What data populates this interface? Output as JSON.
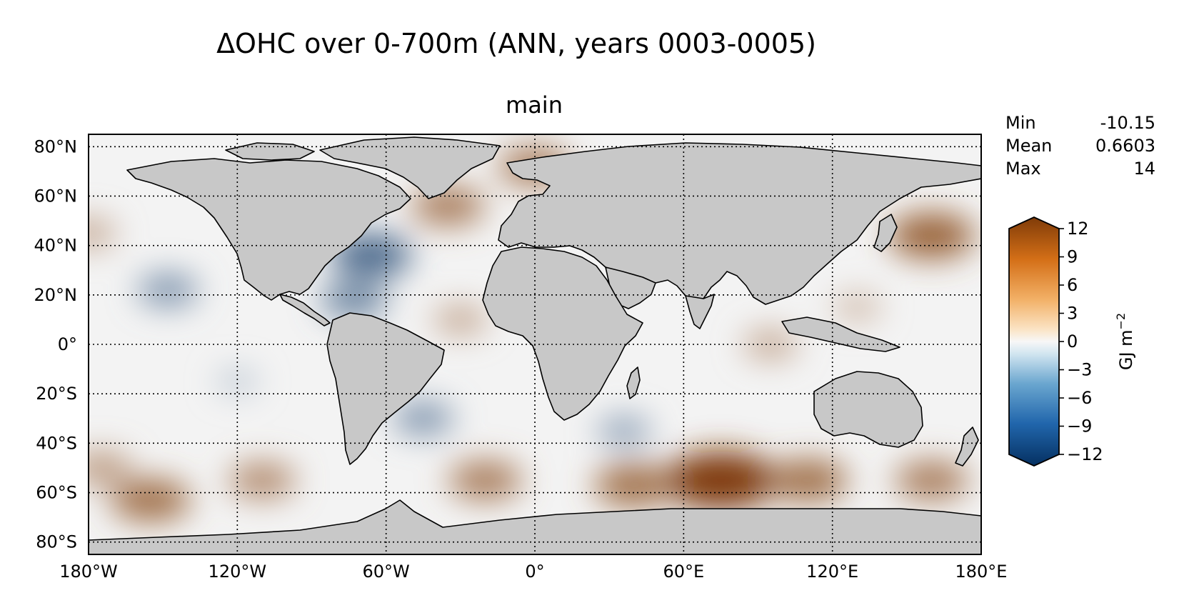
{
  "title": "ΔOHC over 0-700m (ANN, years 0003-0005)",
  "subtitle": "main",
  "stats": [
    {
      "label": "Min",
      "value": "-10.15"
    },
    {
      "label": "Mean",
      "value": "0.6603"
    },
    {
      "label": "Max",
      "value": "14"
    }
  ],
  "colorbar": {
    "label_unit": "GJ m",
    "label_exp": "−2",
    "ticks": [
      "−12",
      "−9",
      "−6",
      "−3",
      "0",
      "3",
      "6",
      "9",
      "12"
    ],
    "tick_values": [
      -12,
      -9,
      -6,
      -3,
      0,
      3,
      6,
      9,
      12
    ],
    "range": [
      -12,
      12
    ],
    "colors": {
      "neg_end": "#053061",
      "mid": "#f7f7f7",
      "pos_end": "#7f3b08"
    }
  },
  "axes": {
    "lon_labels": [
      "180°W",
      "120°W",
      "60°W",
      "0°",
      "60°E",
      "120°E",
      "180°E"
    ],
    "lon_values": [
      -180,
      -120,
      -60,
      0,
      60,
      120,
      180
    ],
    "lat_labels": [
      "80°N",
      "60°N",
      "40°N",
      "20°N",
      "0°",
      "20°S",
      "40°S",
      "60°S",
      "80°S"
    ],
    "lat_values": [
      80,
      60,
      40,
      20,
      0,
      -20,
      -40,
      -60,
      -80
    ],
    "lat_range": [
      -85,
      85
    ],
    "lon_range": [
      -180,
      180
    ],
    "grid": "dotted"
  },
  "map": {
    "land_color": "#c8c8c8",
    "coastline_color": "#000000"
  },
  "anomalies": [
    {
      "lon": -148,
      "lat": 22,
      "value": -5
    },
    {
      "lon": -66,
      "lat": 36,
      "value": -8
    },
    {
      "lon": -73,
      "lat": 18,
      "value": -6
    },
    {
      "lon": -45,
      "lat": -30,
      "value": -5
    },
    {
      "lon": 36,
      "lat": -35,
      "value": -4
    },
    {
      "lon": -120,
      "lat": -15,
      "value": -2
    },
    {
      "lon": -35,
      "lat": 56,
      "value": 7
    },
    {
      "lon": 0,
      "lat": 72,
      "value": 7
    },
    {
      "lon": -180,
      "lat": 45,
      "value": 4
    },
    {
      "lon": 160,
      "lat": 44,
      "value": 9
    },
    {
      "lon": 75,
      "lat": -55,
      "value": 13
    },
    {
      "lon": 40,
      "lat": -57,
      "value": 8
    },
    {
      "lon": 110,
      "lat": -55,
      "value": 8
    },
    {
      "lon": 160,
      "lat": -55,
      "value": 7
    },
    {
      "lon": -155,
      "lat": -63,
      "value": 8
    },
    {
      "lon": -20,
      "lat": -55,
      "value": 7
    },
    {
      "lon": -110,
      "lat": -55,
      "value": 6
    },
    {
      "lon": 95,
      "lat": 0,
      "value": 4
    },
    {
      "lon": 130,
      "lat": 15,
      "value": 3
    },
    {
      "lon": -30,
      "lat": 10,
      "value": 4
    },
    {
      "lon": -175,
      "lat": -50,
      "value": 5
    }
  ]
}
